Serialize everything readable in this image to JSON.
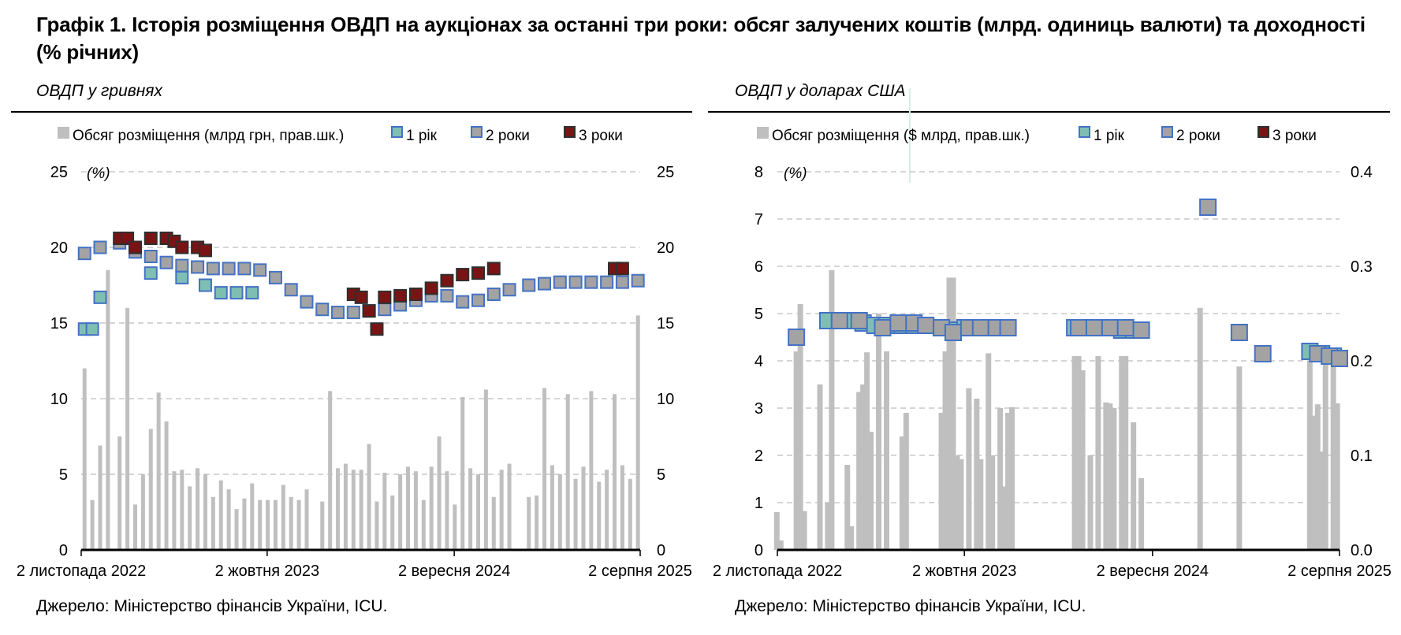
{
  "title": "Графік 1. Історія розміщення ОВДП на аукціонах за останні три роки: обсяг залучених коштів (млрд. одиниць валюти) та доходності (% річних)",
  "colors": {
    "volume": "#bfbfbf",
    "y1": "#7fbfb3",
    "y2": "#a3a3a3",
    "y3": "#7a1414",
    "border": "#4472c4"
  },
  "chart_data": [
    {
      "type": "bar",
      "subtitle": "ОВДП у гривнях",
      "unit_label": "(%)",
      "source": "Джерело: Міністерство фінансів України, ICU.",
      "legend": [
        "Обсяг розміщення (млрд грн, прав.шк.)",
        "1 рік",
        "2 роки",
        "3 роки"
      ],
      "x_ticks": [
        "2 листопада 2022",
        "2 жовтня 2023",
        "2 вересня 2024",
        "2 серпня 2025"
      ],
      "x_tick_dates": [
        "2022-11-02",
        "2023-10-02",
        "2024-09-02",
        "2025-08-02"
      ],
      "x_range": [
        "2022-11-02",
        "2025-08-02"
      ],
      "y_left_ticks": [
        "25",
        "20",
        "15",
        "10",
        "5",
        "0"
      ],
      "y_right_ticks": [
        "25",
        "20",
        "15",
        "10",
        "5",
        "0"
      ],
      "ylim_left": [
        0,
        25
      ],
      "ylim_right": [
        0,
        25
      ],
      "grid": true,
      "legend_position": "top",
      "volume": {
        "name": "Обсяг розміщення (млрд грн, прав.шк.)",
        "x": [
          "2022-11-08",
          "2022-11-22",
          "2022-12-06",
          "2022-12-20",
          "2023-01-10",
          "2023-01-24",
          "2023-02-07",
          "2023-02-21",
          "2023-03-07",
          "2023-03-21",
          "2023-04-04",
          "2023-04-18",
          "2023-05-02",
          "2023-05-16",
          "2023-05-30",
          "2023-06-13",
          "2023-06-27",
          "2023-07-11",
          "2023-07-25",
          "2023-08-08",
          "2023-08-22",
          "2023-09-05",
          "2023-09-19",
          "2023-10-03",
          "2023-10-17",
          "2023-10-31",
          "2023-11-14",
          "2023-11-28",
          "2023-12-12",
          "2024-01-09",
          "2024-01-23",
          "2024-02-06",
          "2024-02-20",
          "2024-03-05",
          "2024-03-19",
          "2024-04-02",
          "2024-04-16",
          "2024-04-30",
          "2024-05-14",
          "2024-05-28",
          "2024-06-11",
          "2024-06-25",
          "2024-07-09",
          "2024-07-23",
          "2024-08-06",
          "2024-08-20",
          "2024-09-03",
          "2024-09-17",
          "2024-10-01",
          "2024-10-15",
          "2024-10-29",
          "2024-11-12",
          "2024-11-26",
          "2024-12-10",
          "2025-01-14",
          "2025-01-28",
          "2025-02-11",
          "2025-02-25",
          "2025-03-11",
          "2025-03-25",
          "2025-04-08",
          "2025-04-22",
          "2025-05-06",
          "2025-05-20",
          "2025-06-03",
          "2025-06-17",
          "2025-07-01",
          "2025-07-15",
          "2025-07-29"
        ],
        "values": [
          12.0,
          3.3,
          6.9,
          18.5,
          7.5,
          16.0,
          3.0,
          5.0,
          8.0,
          10.4,
          8.5,
          5.2,
          5.3,
          4.2,
          5.4,
          5.0,
          3.5,
          4.6,
          4.0,
          2.7,
          3.4,
          4.4,
          3.3,
          3.3,
          3.3,
          4.3,
          3.5,
          3.3,
          4.0,
          3.2,
          10.5,
          5.4,
          5.7,
          5.3,
          5.3,
          7.0,
          3.2,
          5.1,
          3.6,
          5.0,
          5.5,
          5.2,
          3.3,
          5.5,
          7.5,
          5.2,
          3.0,
          10.1,
          5.4,
          5.0,
          10.6,
          3.5,
          5.3,
          5.7,
          3.5,
          3.6,
          10.7,
          5.6,
          5.0,
          10.3,
          4.7,
          5.5,
          10.5,
          4.5,
          5.3,
          10.3,
          5.6,
          4.7,
          15.5
        ]
      },
      "series": [
        {
          "name": "1 рік",
          "x": [
            "2022-11-08",
            "2022-11-22",
            "2022-12-06",
            "2023-03-07",
            "2023-05-02",
            "2023-06-13",
            "2023-07-11",
            "2023-08-08",
            "2023-09-05"
          ],
          "values": [
            14.6,
            14.6,
            16.7,
            18.3,
            18.0,
            17.5,
            17.0,
            17.0,
            17.0
          ]
        },
        {
          "name": "2 роки",
          "x": [
            "2022-11-08",
            "2022-12-06",
            "2023-01-10",
            "2023-02-07",
            "2023-03-07",
            "2023-04-04",
            "2023-05-02",
            "2023-05-30",
            "2023-06-27",
            "2023-07-25",
            "2023-08-22",
            "2023-09-19",
            "2023-10-17",
            "2023-11-14",
            "2023-12-12",
            "2024-01-09",
            "2024-02-06",
            "2024-03-05",
            "2024-04-02",
            "2024-04-30",
            "2024-05-28",
            "2024-06-25",
            "2024-07-23",
            "2024-08-20",
            "2024-09-17",
            "2024-10-15",
            "2024-11-12",
            "2024-12-10",
            "2025-01-14",
            "2025-02-11",
            "2025-03-11",
            "2025-04-08",
            "2025-05-06",
            "2025-06-03",
            "2025-07-01",
            "2025-07-29"
          ],
          "values": [
            19.6,
            20.0,
            20.3,
            19.7,
            19.4,
            19.0,
            18.8,
            18.7,
            18.6,
            18.6,
            18.6,
            18.5,
            18.0,
            17.2,
            16.4,
            15.9,
            15.7,
            15.7,
            15.8,
            15.9,
            16.2,
            16.5,
            16.8,
            16.8,
            16.4,
            16.5,
            16.9,
            17.2,
            17.5,
            17.6,
            17.7,
            17.7,
            17.7,
            17.7,
            17.7,
            17.8
          ]
        },
        {
          "name": "3 роки",
          "x": [
            "2023-01-10",
            "2023-01-24",
            "2023-02-07",
            "2023-03-07",
            "2023-04-04",
            "2023-04-18",
            "2023-05-02",
            "2023-05-30",
            "2023-06-13",
            "2024-03-05",
            "2024-03-19",
            "2024-04-02",
            "2024-04-16",
            "2024-04-30",
            "2024-05-28",
            "2024-06-25",
            "2024-07-23",
            "2024-08-20",
            "2024-09-17",
            "2024-10-15",
            "2024-11-12",
            "2025-06-17",
            "2025-07-01"
          ],
          "values": [
            20.6,
            20.6,
            20.0,
            20.6,
            20.6,
            20.4,
            20.0,
            20.0,
            19.8,
            16.9,
            16.7,
            15.8,
            14.6,
            16.7,
            16.8,
            16.9,
            17.3,
            17.8,
            18.2,
            18.3,
            18.6,
            18.6,
            18.6
          ]
        }
      ]
    },
    {
      "type": "bar",
      "subtitle": "ОВДП у доларах США",
      "unit_label": "(%)",
      "source": "Джерело: Міністерство фінансів України, ICU.",
      "legend": [
        "Обсяг розміщення ($ млрд, прав.шк.)",
        "1 рік",
        "2 роки",
        "3 роки"
      ],
      "x_ticks": [
        "2 листопада 2022",
        "2 жовтня 2023",
        "2 вересня 2024",
        "2 серпня 2025"
      ],
      "x_tick_dates": [
        "2022-11-02",
        "2023-10-02",
        "2024-09-02",
        "2025-08-02"
      ],
      "x_range": [
        "2022-11-02",
        "2025-08-02"
      ],
      "y_left_ticks": [
        "8",
        "7",
        "6",
        "5",
        "4",
        "3",
        "2",
        "1",
        "0"
      ],
      "y_right_ticks": [
        "0.4",
        "0.3",
        "0.2",
        "0.1",
        "0.0"
      ],
      "ylim_left": [
        0,
        8
      ],
      "ylim_right": [
        0,
        0.4
      ],
      "grid": true,
      "legend_position": "top",
      "volume": {
        "name": "Обсяг розміщення ($ млрд, прав.шк.)",
        "x": [
          "2022-11-01",
          "2022-11-08",
          "2022-12-06",
          "2022-12-13",
          "2022-12-20",
          "2023-01-17",
          "2023-01-31",
          "2023-02-07",
          "2023-03-07",
          "2023-03-14",
          "2023-03-28",
          "2023-04-04",
          "2023-04-11",
          "2023-04-18",
          "2023-05-02",
          "2023-05-16",
          "2023-06-13",
          "2023-06-20",
          "2023-08-22",
          "2023-08-29",
          "2023-09-05",
          "2023-09-12",
          "2023-09-19",
          "2023-09-26",
          "2023-10-10",
          "2023-10-24",
          "2023-10-31",
          "2023-11-14",
          "2023-11-21",
          "2023-12-05",
          "2023-12-12",
          "2023-12-19",
          "2023-12-26",
          "2024-04-16",
          "2024-04-23",
          "2024-04-30",
          "2024-05-14",
          "2024-05-28",
          "2024-06-11",
          "2024-06-18",
          "2024-06-25",
          "2024-07-09",
          "2024-07-16",
          "2024-07-30",
          "2024-08-13",
          "2024-11-26",
          "2025-02-04",
          "2025-06-10",
          "2025-06-17",
          "2025-06-24",
          "2025-07-01",
          "2025-07-08",
          "2025-07-22",
          "2025-07-29"
        ],
        "values": [
          0.04,
          0.01,
          0.21,
          0.26,
          0.041,
          0.175,
          0.05,
          0.296,
          0.09,
          0.025,
          0.167,
          0.175,
          0.209,
          0.125,
          0.25,
          0.21,
          0.12,
          0.145,
          0.145,
          0.21,
          0.288,
          0.288,
          0.1,
          0.096,
          0.171,
          0.16,
          0.096,
          0.208,
          0.1,
          0.15,
          0.067,
          0.145,
          0.151,
          0.205,
          0.205,
          0.19,
          0.1,
          0.205,
          0.156,
          0.155,
          0.15,
          0.205,
          0.205,
          0.135,
          0.076,
          0.256,
          0.194,
          0.2,
          0.142,
          0.154,
          0.104,
          0.205,
          0.205,
          0.155
        ]
      },
      "series": [
        {
          "name": "1 рік",
          "x": [
            "2023-01-31",
            "2023-02-21",
            "2023-03-14",
            "2023-04-04",
            "2023-04-25",
            "2023-05-16",
            "2023-06-13",
            "2023-07-04",
            "2023-07-25",
            "2023-08-22",
            "2023-09-12",
            "2023-10-03",
            "2023-10-24",
            "2023-11-14",
            "2023-12-05",
            "2024-04-16",
            "2024-05-07",
            "2024-05-28",
            "2024-06-18",
            "2024-07-09",
            "2024-07-30",
            "2025-06-10",
            "2025-07-01",
            "2025-07-22"
          ],
          "values": [
            4.85,
            4.85,
            4.85,
            4.8,
            4.75,
            4.75,
            4.75,
            4.75,
            4.75,
            4.7,
            4.65,
            4.7,
            4.7,
            4.7,
            4.7,
            4.7,
            4.7,
            4.7,
            4.7,
            4.65,
            4.65,
            4.2,
            4.15,
            4.1
          ]
        },
        {
          "name": "2 роки",
          "x": [
            "2022-12-06",
            "2023-02-21",
            "2023-03-28",
            "2023-05-09",
            "2023-06-06",
            "2023-07-04",
            "2023-07-25",
            "2023-08-22",
            "2023-09-12",
            "2023-10-10",
            "2023-10-31",
            "2023-11-28",
            "2023-12-19",
            "2024-04-23",
            "2024-05-21",
            "2024-06-18",
            "2024-07-16",
            "2024-08-13",
            "2024-12-10",
            "2025-02-04",
            "2025-03-18",
            "2025-06-24",
            "2025-07-15",
            "2025-08-02"
          ],
          "values": [
            4.5,
            4.85,
            4.85,
            4.7,
            4.8,
            4.8,
            4.75,
            4.7,
            4.6,
            4.7,
            4.7,
            4.7,
            4.7,
            4.7,
            4.7,
            4.7,
            4.7,
            4.65,
            7.25,
            4.6,
            4.15,
            4.15,
            4.1,
            4.05
          ]
        },
        {
          "name": "3 роки",
          "x": [],
          "values": []
        }
      ]
    }
  ]
}
